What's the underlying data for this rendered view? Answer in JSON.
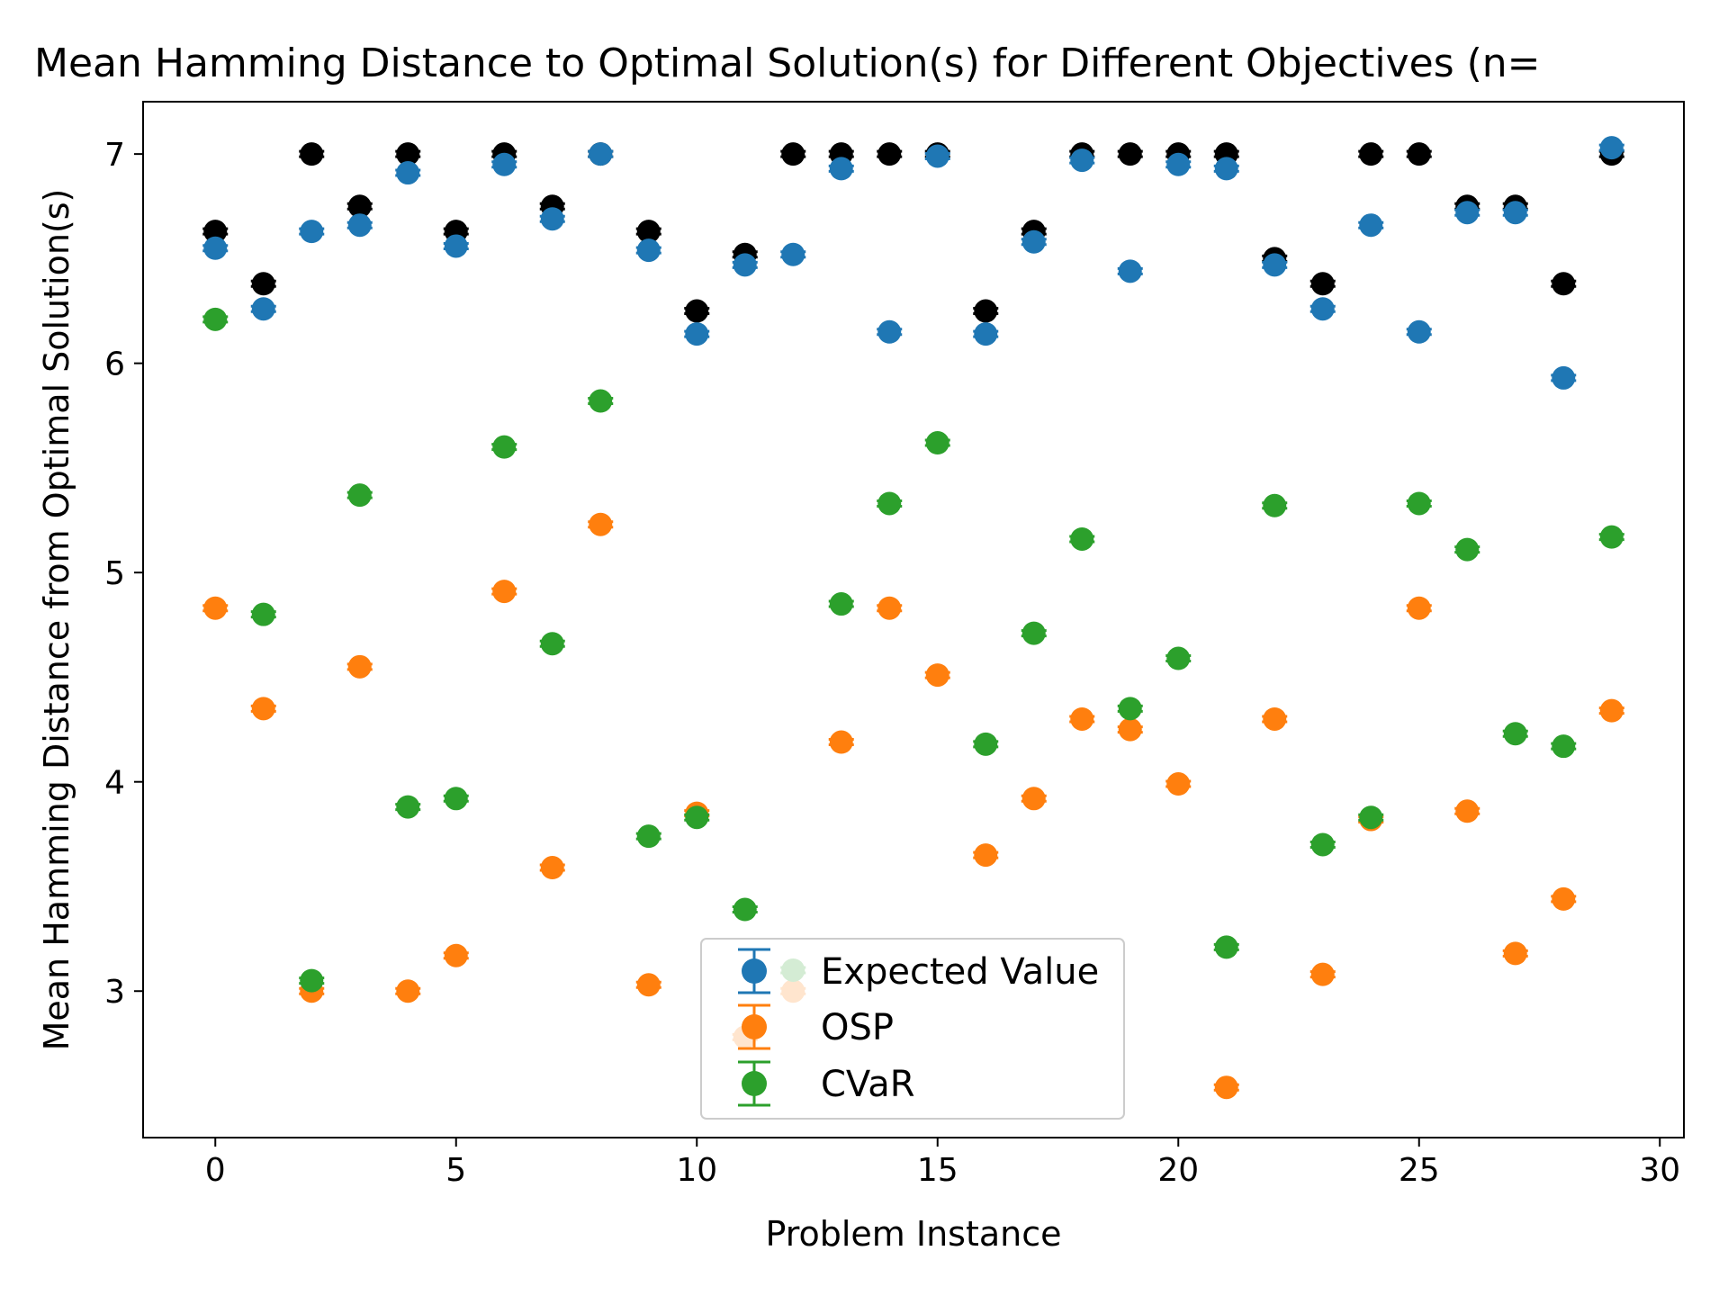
{
  "chart_data": {
    "type": "scatter",
    "title": "Mean Hamming Distance to Optimal Solution(s) for Different Objectives (n=",
    "xlabel": "Problem Instance",
    "ylabel": "Mean Hamming Distance from Optimal Solution(s)",
    "xlim": [
      -1.5,
      30.5
    ],
    "ylim": [
      2.3,
      7.25
    ],
    "xticks": [
      0,
      5,
      10,
      15,
      20,
      25,
      30
    ],
    "yticks": [
      3,
      4,
      5,
      6,
      7
    ],
    "grid": false,
    "legend_position": "lower-center",
    "x": [
      0,
      1,
      2,
      3,
      4,
      5,
      6,
      7,
      8,
      9,
      10,
      11,
      12,
      13,
      14,
      15,
      16,
      17,
      18,
      19,
      20,
      21,
      22,
      23,
      24,
      25,
      26,
      27,
      28,
      29
    ],
    "reference": {
      "color": "#000000",
      "values": [
        6.63,
        6.38,
        7.0,
        6.75,
        7.0,
        6.63,
        7.0,
        6.75,
        7.0,
        6.63,
        6.25,
        6.52,
        7.0,
        7.0,
        7.0,
        7.0,
        6.25,
        6.63,
        7.0,
        7.0,
        7.0,
        7.0,
        6.5,
        6.38,
        7.0,
        7.0,
        6.75,
        6.75,
        6.38,
        7.0
      ]
    },
    "series": [
      {
        "name": "Expected Value",
        "color": "#1f77b4",
        "values": [
          6.55,
          6.26,
          6.63,
          6.66,
          6.91,
          6.56,
          6.95,
          6.69,
          7.0,
          6.54,
          6.14,
          6.47,
          6.52,
          6.93,
          6.15,
          6.99,
          6.14,
          6.58,
          6.97,
          6.44,
          6.95,
          6.93,
          6.47,
          6.26,
          6.66,
          6.15,
          6.72,
          6.72,
          5.93,
          7.03
        ]
      },
      {
        "name": "OSP",
        "color": "#ff7f0e",
        "values": [
          4.83,
          4.35,
          3.0,
          4.55,
          3.0,
          3.17,
          4.91,
          3.59,
          5.23,
          3.03,
          3.85,
          2.78,
          3.0,
          4.19,
          4.83,
          4.51,
          3.65,
          3.92,
          4.3,
          4.25,
          3.99,
          2.54,
          4.3,
          3.08,
          3.82,
          4.83,
          3.86,
          3.18,
          3.44,
          4.34
        ]
      },
      {
        "name": "CVaR",
        "color": "#2ca02c",
        "values": [
          6.21,
          4.8,
          3.05,
          5.37,
          3.88,
          3.92,
          5.6,
          4.66,
          5.82,
          3.74,
          3.83,
          3.39,
          3.1,
          4.85,
          5.33,
          5.62,
          4.18,
          4.71,
          5.16,
          4.35,
          4.59,
          3.21,
          5.32,
          3.7,
          3.83,
          5.33,
          5.11,
          4.23,
          4.17,
          5.17
        ]
      }
    ]
  }
}
